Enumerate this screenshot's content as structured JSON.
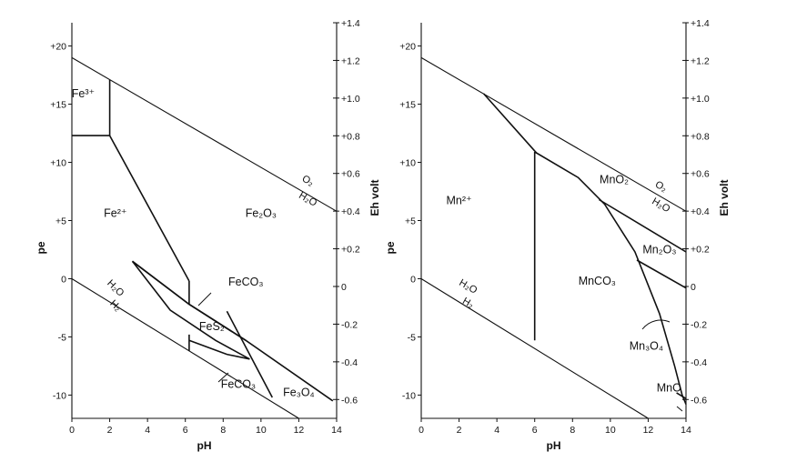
{
  "chart_data": [
    {
      "type": "line",
      "xlabel": "pH",
      "ylabel": "pe",
      "y2label": "Eh volt",
      "xlim": [
        0,
        14
      ],
      "ylim": [
        -12,
        22
      ],
      "y2lim": [
        -0.7,
        1.4
      ],
      "x_ticks": [
        "0",
        "2",
        "4",
        "6",
        "8",
        "10",
        "12",
        "14"
      ],
      "y_ticks": [
        {
          "value": 20,
          "label": "+20"
        },
        {
          "value": 15,
          "label": "+15"
        },
        {
          "value": 10,
          "label": "+10"
        },
        {
          "value": 5,
          "label": "+5"
        },
        {
          "value": 0,
          "label": "0"
        },
        {
          "value": -5,
          "label": "-5"
        },
        {
          "value": -10,
          "label": "-10"
        }
      ],
      "y2_ticks": [
        {
          "value": 1.4,
          "label": "+1.4"
        },
        {
          "value": 1.2,
          "label": "+1.2"
        },
        {
          "value": 1.0,
          "label": "+1.0"
        },
        {
          "value": 0.8,
          "label": "+0.8"
        },
        {
          "value": 0.6,
          "label": "+0.6"
        },
        {
          "value": 0.4,
          "label": "+0.4"
        },
        {
          "value": 0.2,
          "label": "+0.2"
        },
        {
          "value": 0,
          "label": "0"
        },
        {
          "value": -0.2,
          "label": "-0.2"
        },
        {
          "value": -0.4,
          "label": "-0.4"
        },
        {
          "value": -0.6,
          "label": "-0.6"
        }
      ],
      "water_lines": [
        {
          "points": [
            [
              0,
              19
            ],
            [
              14,
              5.8
            ]
          ]
        },
        {
          "points": [
            [
              0,
              0
            ],
            [
              12,
              -12
            ]
          ]
        }
      ],
      "series": [
        {
          "points": [
            [
              0,
              12.3
            ],
            [
              2,
              12.3
            ]
          ]
        },
        {
          "points": [
            [
              2,
              12.3
            ],
            [
              2,
              17.1
            ]
          ]
        },
        {
          "points": [
            [
              2,
              12.3
            ],
            [
              6.2,
              -0.2
            ]
          ]
        },
        {
          "points": [
            [
              6.2,
              -0.2
            ],
            [
              6.2,
              -2.2
            ]
          ]
        },
        {
          "points": [
            [
              6.2,
              -4.8
            ],
            [
              6.2,
              -6.2
            ]
          ]
        },
        {
          "points": [
            [
              3.2,
              1.5
            ],
            [
              6.2,
              -2.2
            ],
            [
              9.2,
              -5.3
            ],
            [
              13.8,
              -10.5
            ]
          ]
        },
        {
          "points": [
            [
              3.2,
              1.5
            ],
            [
              6.2,
              -2.2
            ],
            [
              9.2,
              -5.3
            ]
          ]
        },
        {
          "points": [
            [
              6.2,
              -5.3
            ],
            [
              8.2,
              -6.5
            ],
            [
              9.4,
              -6.9
            ]
          ]
        },
        {
          "points": [
            [
              3.2,
              1.5
            ],
            [
              5.2,
              -2.7
            ],
            [
              7.6,
              -5.3
            ],
            [
              9.4,
              -6.9
            ]
          ]
        },
        {
          "points": [
            [
              8.2,
              -2.8
            ],
            [
              10.6,
              -10.2
            ]
          ]
        }
      ],
      "labels": [
        {
          "x": 0.6,
          "y": 15.6,
          "text": "Fe³⁺"
        },
        {
          "x": 2.3,
          "y": 5.3,
          "text": "Fe²⁺"
        },
        {
          "x": 10.0,
          "y": 5.3,
          "text": "Fe₂O₃"
        },
        {
          "x": 9.2,
          "y": -0.6,
          "text": "FeCO₃"
        },
        {
          "x": 7.4,
          "y": -4.4,
          "text": "FeS₂"
        },
        {
          "x": 8.8,
          "y": -9.4,
          "text": "FeCO₃"
        },
        {
          "x": 12.0,
          "y": -10.1,
          "text": "Fe₃O₄"
        },
        {
          "x": 2.2,
          "y": -1.0,
          "text": "H₂O"
        },
        {
          "x": 2.2,
          "y": -2.5,
          "text": "H₂"
        },
        {
          "x": 12.4,
          "y": 8.2,
          "text": "O₂"
        },
        {
          "x": 12.4,
          "y": 6.6,
          "text": "H₂O"
        }
      ]
    },
    {
      "type": "line",
      "xlabel": "pH",
      "ylabel": "pe",
      "y2label": "Eh volt",
      "xlim": [
        0,
        14
      ],
      "ylim": [
        -12,
        22
      ],
      "y2lim": [
        -0.7,
        1.4
      ],
      "x_ticks": [
        "0",
        "2",
        "4",
        "6",
        "8",
        "10",
        "12",
        "14"
      ],
      "y_ticks": [
        {
          "value": 20,
          "label": "+20"
        },
        {
          "value": 15,
          "label": "+15"
        },
        {
          "value": 10,
          "label": "+10"
        },
        {
          "value": 5,
          "label": "+5"
        },
        {
          "value": 0,
          "label": "0"
        },
        {
          "value": -5,
          "label": "-5"
        },
        {
          "value": -10,
          "label": "-10"
        }
      ],
      "y2_ticks": [
        {
          "value": 1.4,
          "label": "+1.4"
        },
        {
          "value": 1.2,
          "label": "+1.2"
        },
        {
          "value": 1.0,
          "label": "+1.0"
        },
        {
          "value": 0.8,
          "label": "+0.8"
        },
        {
          "value": 0.6,
          "label": "+0.6"
        },
        {
          "value": 0.4,
          "label": "+0.4"
        },
        {
          "value": 0.2,
          "label": "+0.2"
        },
        {
          "value": 0,
          "label": "0"
        },
        {
          "value": -0.2,
          "label": "-0.2"
        },
        {
          "value": -0.4,
          "label": "-0.4"
        },
        {
          "value": -0.6,
          "label": "-0.6"
        }
      ],
      "water_lines": [
        {
          "points": [
            [
              0,
              19
            ],
            [
              14,
              5.8
            ]
          ]
        },
        {
          "points": [
            [
              0,
              0
            ],
            [
              12,
              -12
            ]
          ]
        }
      ],
      "series": [
        {
          "points": [
            [
              3.3,
              15.9
            ],
            [
              6.1,
              10.8
            ]
          ]
        },
        {
          "points": [
            [
              6.0,
              -5.3
            ],
            [
              6.0,
              10.9
            ]
          ]
        },
        {
          "points": [
            [
              6.0,
              10.9
            ],
            [
              8.3,
              8.7
            ],
            [
              9.7,
              6.4
            ],
            [
              11.3,
              2.3
            ],
            [
              12.6,
              -3.0
            ],
            [
              13.4,
              -7.5
            ],
            [
              13.8,
              -10.0
            ],
            [
              14.0,
              -10.8
            ]
          ]
        },
        {
          "points": [
            [
              9.4,
              6.8
            ],
            [
              14.0,
              2.3
            ]
          ]
        },
        {
          "points": [
            [
              11.4,
              1.6
            ],
            [
              14.0,
              -0.8
            ]
          ]
        },
        {
          "points": [
            [
              13.5,
              -9.8
            ],
            [
              14.0,
              -10.3
            ]
          ]
        }
      ],
      "labels": [
        {
          "x": 2.0,
          "y": 6.4,
          "text": "Mn²⁺"
        },
        {
          "x": 10.2,
          "y": 8.2,
          "text": "MnO₂"
        },
        {
          "x": 12.6,
          "y": 2.2,
          "text": "Mn₂O₃"
        },
        {
          "x": 9.3,
          "y": -0.5,
          "text": "MnCO₃"
        },
        {
          "x": 11.9,
          "y": -6.1,
          "text": "Mn₃O₄"
        },
        {
          "x": 13.1,
          "y": -9.7,
          "text": "MnO"
        },
        {
          "x": 2.4,
          "y": -0.9,
          "text": "H₂O"
        },
        {
          "x": 2.4,
          "y": -2.3,
          "text": "H₂"
        },
        {
          "x": 12.6,
          "y": 7.7,
          "text": "O₂"
        },
        {
          "x": 12.6,
          "y": 6.1,
          "text": "H₂O"
        }
      ]
    }
  ]
}
